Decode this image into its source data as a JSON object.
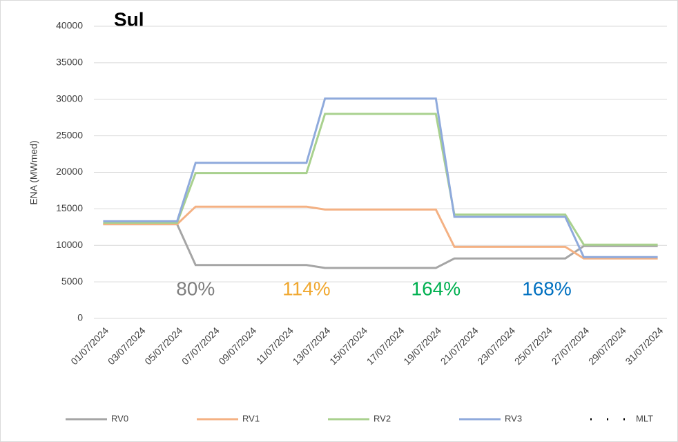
{
  "chart_data": {
    "type": "line",
    "title": "Sul",
    "y_label": "ENA (MWmed)",
    "categories": [
      "01/07/2024",
      null,
      "03/07/2024",
      null,
      "05/07/2024",
      null,
      "07/07/2024",
      null,
      "09/07/2024",
      null,
      "11/07/2024",
      null,
      "13/07/2024",
      null,
      "15/07/2024",
      null,
      "17/07/2024",
      null,
      "19/07/2024",
      null,
      "21/07/2024",
      null,
      "23/07/2024",
      null,
      "25/07/2024",
      null,
      "27/07/2024",
      null,
      "29/07/2024",
      null,
      "31/07/2024"
    ],
    "series": [
      {
        "name": "RV0",
        "color": "#a5a5a5",
        "values": [
          12900,
          12900,
          12900,
          12900,
          12900,
          7300,
          7300,
          7300,
          7300,
          7300,
          7300,
          7300,
          6900,
          6900,
          6900,
          6900,
          6900,
          6900,
          6900,
          8200,
          8200,
          8200,
          8200,
          8200,
          8200,
          8200,
          9900,
          9900,
          9900,
          9900,
          9900
        ]
      },
      {
        "name": "RV1",
        "color": "#f4b183",
        "values": [
          12900,
          12900,
          12900,
          12900,
          12900,
          15300,
          15300,
          15300,
          15300,
          15300,
          15300,
          15300,
          14900,
          14900,
          14900,
          14900,
          14900,
          14900,
          14900,
          9800,
          9800,
          9800,
          9800,
          9800,
          9800,
          9800,
          8200,
          8200,
          8200,
          8200,
          8200
        ]
      },
      {
        "name": "RV2",
        "color": "#a9d18e",
        "values": [
          13100,
          13100,
          13100,
          13100,
          13100,
          19900,
          19900,
          19900,
          19900,
          19900,
          19900,
          19900,
          28000,
          28000,
          28000,
          28000,
          28000,
          28000,
          28000,
          14200,
          14200,
          14200,
          14200,
          14200,
          14200,
          14200,
          10100,
          10100,
          10100,
          10100,
          10100
        ]
      },
      {
        "name": "RV3",
        "color": "#8faadc",
        "values": [
          13300,
          13300,
          13300,
          13300,
          13300,
          21300,
          21300,
          21300,
          21300,
          21300,
          21300,
          21300,
          30100,
          30100,
          30100,
          30100,
          30100,
          30100,
          30100,
          13900,
          13900,
          13900,
          13900,
          13900,
          13900,
          13900,
          8400,
          8400,
          8400,
          8400,
          8400
        ]
      },
      {
        "name": "MLT",
        "color": "#000000",
        "dashed": true,
        "values": [
          null,
          null,
          null,
          null,
          null,
          null,
          null,
          null,
          null,
          null,
          null,
          null,
          null,
          null,
          null,
          null,
          null,
          null,
          null,
          null,
          null,
          null,
          null,
          null,
          null,
          null,
          null,
          null,
          null,
          null,
          null
        ]
      }
    ],
    "annotations": [
      {
        "text": "80%",
        "color": "#7f7f7f",
        "category": 5
      },
      {
        "text": "114%",
        "color": "#f0a830",
        "category": 11
      },
      {
        "text": "164%",
        "color": "#00b050",
        "category": 18
      },
      {
        "text": "168%",
        "color": "#0070c0",
        "category": 24
      }
    ],
    "ylim": [
      0,
      40000
    ],
    "yticks": [
      0,
      5000,
      10000,
      15000,
      20000,
      25000,
      30000,
      35000,
      40000
    ],
    "grid": true
  }
}
